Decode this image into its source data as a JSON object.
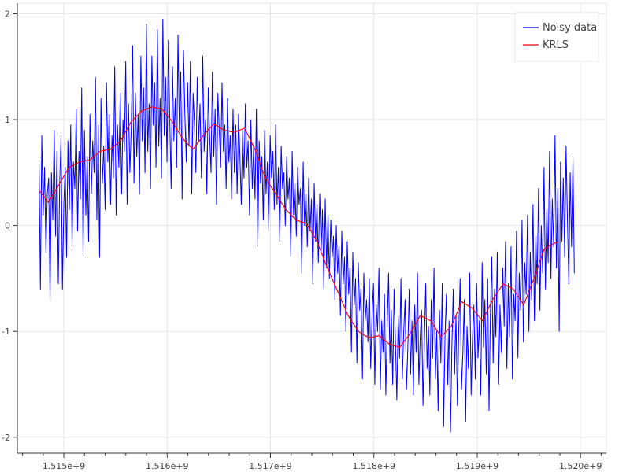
{
  "chart_data": {
    "type": "line",
    "title": "",
    "xlabel": "",
    "ylabel": "",
    "xlim": [
      1514550000,
      1520250000
    ],
    "ylim": [
      -2.15,
      2.1
    ],
    "x_ticks": [
      1515000000,
      1516000000,
      1517000000,
      1518000000,
      1519000000,
      1520000000
    ],
    "x_tick_labels": [
      "1.515e+9",
      "1.516e+9",
      "1.517e+9",
      "1.518e+9",
      "1.519e+9",
      "1.520e+9"
    ],
    "y_ticks": [
      -2,
      -1,
      0,
      1,
      2
    ],
    "y_tick_labels": [
      "-2",
      "-1",
      "0",
      "1",
      "2"
    ],
    "grid": true,
    "legend": {
      "placement": "top-right",
      "entries": [
        {
          "label": "Noisy data",
          "color": "#0000ff"
        },
        {
          "label": "KRLS",
          "color": "#ff0000"
        }
      ]
    },
    "series": [
      {
        "name": "Noisy data",
        "color": "#0000ff",
        "x_start": 1514760000,
        "x_end": 1519940000,
        "count": 400,
        "values": [
          0.62,
          -0.6,
          0.85,
          0.1,
          0.55,
          -0.25,
          0.3,
          0.45,
          -0.72,
          0.5,
          0.05,
          0.9,
          -0.1,
          0.7,
          -0.55,
          0.4,
          0.85,
          -0.6,
          0.2,
          0.55,
          -0.3,
          0.8,
          0.15,
          0.95,
          -0.2,
          0.6,
          0.35,
          1.1,
          -0.05,
          0.7,
          0.25,
          1.3,
          -0.3,
          0.9,
          0.1,
          0.65,
          -0.15,
          1.05,
          0.3,
          0.8,
          0.5,
          1.4,
          0.05,
          0.95,
          -0.3,
          1.2,
          0.4,
          0.75,
          0.15,
          1.35,
          0.6,
          1.05,
          0.2,
          0.85,
          0.45,
          1.5,
          0.1,
          0.95,
          0.55,
          1.25,
          0.3,
          1.0,
          0.7,
          1.55,
          0.2,
          1.15,
          0.5,
          0.9,
          1.7,
          0.4,
          1.25,
          0.65,
          1.05,
          0.3,
          1.6,
          0.8,
          1.3,
          0.5,
          1.9,
          0.7,
          1.15,
          0.35,
          1.6,
          0.95,
          1.35,
          0.55,
          1.85,
          0.75,
          1.2,
          0.45,
          1.95,
          0.85,
          1.4,
          0.6,
          1.75,
          1.0,
          0.35,
          1.5,
          0.8,
          1.2,
          0.55,
          1.8,
          0.9,
          1.45,
          0.25,
          1.65,
          1.05,
          0.6,
          1.35,
          0.75,
          1.55,
          0.3,
          1.25,
          0.95,
          0.5,
          1.4,
          0.8,
          1.15,
          0.45,
          1.6,
          0.7,
          1.0,
          0.3,
          1.3,
          0.85,
          0.5,
          1.45,
          0.65,
          1.1,
          0.2,
          1.25,
          0.9,
          0.55,
          1.35,
          0.7,
          0.95,
          0.35,
          1.2,
          0.6,
          0.85,
          0.25,
          1.1,
          0.5,
          0.95,
          0.3,
          1.05,
          0.65,
          0.2,
          0.9,
          0.45,
          1.15,
          0.55,
          0.8,
          0.1,
          1.0,
          0.35,
          0.75,
          0.25,
          1.1,
          -0.2,
          0.8,
          0.4,
          0.65,
          0.05,
          0.9,
          0.3,
          0.6,
          -0.05,
          0.85,
          0.45,
          0.7,
          0.15,
          0.95,
          0.2,
          0.55,
          -0.15,
          0.75,
          0.35,
          0.5,
          0.0,
          0.65,
          0.25,
          0.45,
          -0.3,
          0.7,
          0.1,
          0.4,
          -0.1,
          0.55,
          0.2,
          0.35,
          -0.45,
          0.6,
          0.0,
          0.3,
          -0.2,
          0.45,
          -0.05,
          0.25,
          -0.55,
          0.4,
          -0.15,
          0.2,
          -0.35,
          0.3,
          -0.25,
          0.15,
          -0.6,
          0.25,
          -0.4,
          0.1,
          -0.5,
          0.05,
          -0.3,
          -0.1,
          -0.7,
          0.0,
          -0.45,
          -0.2,
          -0.85,
          -0.05,
          -0.55,
          -0.3,
          -1.0,
          -0.15,
          -0.65,
          -0.4,
          -1.2,
          -0.25,
          -0.75,
          -0.5,
          -1.3,
          -0.35,
          -0.8,
          -0.6,
          -1.45,
          -0.45,
          -0.9,
          -0.7,
          -1.1,
          -0.5,
          -1.35,
          -0.85,
          -0.55,
          -1.5,
          -0.75,
          -1.0,
          -0.4,
          -1.55,
          -0.9,
          -1.2,
          -0.65,
          -1.6,
          -0.95,
          -0.45,
          -1.3,
          -0.8,
          -1.5,
          -0.6,
          -1.1,
          -1.65,
          -0.85,
          -1.25,
          -0.5,
          -1.45,
          -1.0,
          -0.7,
          -1.55,
          -1.15,
          -0.6,
          -1.4,
          -0.9,
          -1.6,
          -0.75,
          -1.2,
          -0.45,
          -1.5,
          -1.05,
          -0.8,
          -1.7,
          -1.1,
          -0.55,
          -1.35,
          -0.95,
          -1.6,
          -0.7,
          -1.25,
          -0.4,
          -1.45,
          -1.0,
          -1.75,
          -0.8,
          -1.3,
          -0.55,
          -1.9,
          -1.05,
          -0.65,
          -1.5,
          -0.9,
          -1.95,
          -1.15,
          -0.6,
          -1.4,
          -0.85,
          -1.7,
          -1.0,
          -0.5,
          -1.55,
          -1.2,
          -0.7,
          -1.85,
          -0.95,
          -1.35,
          -0.45,
          -1.6,
          -1.05,
          -0.75,
          -1.45,
          -0.55,
          -1.25,
          -0.9,
          -1.6,
          -0.35,
          -1.15,
          -0.7,
          -1.4,
          -0.5,
          -1.75,
          -0.85,
          -0.3,
          -1.3,
          -0.6,
          -1.05,
          -0.25,
          -1.5,
          -0.75,
          -1.2,
          -0.4,
          -0.95,
          -0.15,
          -1.35,
          -0.55,
          -1.05,
          -0.2,
          -1.45,
          -0.65,
          -0.9,
          -0.05,
          -1.25,
          -0.45,
          -0.8,
          0.05,
          -1.1,
          -0.35,
          -0.65,
          0.1,
          -1.0,
          -0.25,
          -0.7,
          0.2,
          -0.9,
          -0.1,
          -0.55,
          0.35,
          -0.8,
          0.0,
          -0.45,
          0.55,
          -0.6,
          0.15,
          -0.35,
          0.7,
          -0.5,
          0.25,
          -0.2,
          0.85,
          -0.4,
          0.35,
          -1.0,
          0.6,
          -0.15,
          0.45,
          -0.3,
          0.75,
          0.05,
          -0.55,
          0.5,
          -0.2,
          0.65,
          -0.45
        ]
      },
      {
        "name": "KRLS",
        "color": "#ff0000",
        "x": [
          1514760000,
          1514850000,
          1514950000,
          1515050000,
          1515150000,
          1515250000,
          1515350000,
          1515450000,
          1515550000,
          1515650000,
          1515750000,
          1515850000,
          1515950000,
          1516050000,
          1516150000,
          1516250000,
          1516350000,
          1516450000,
          1516550000,
          1516650000,
          1516750000,
          1516850000,
          1516950000,
          1517050000,
          1517150000,
          1517250000,
          1517350000,
          1517450000,
          1517550000,
          1517650000,
          1517750000,
          1517850000,
          1517950000,
          1518050000,
          1518150000,
          1518250000,
          1518350000,
          1518450000,
          1518550000,
          1518650000,
          1518750000,
          1518850000,
          1518950000,
          1519050000,
          1519150000,
          1519250000,
          1519350000,
          1519450000,
          1519550000,
          1519650000,
          1519780000
        ],
        "values": [
          0.33,
          0.22,
          0.38,
          0.55,
          0.6,
          0.62,
          0.7,
          0.72,
          0.8,
          0.98,
          1.08,
          1.12,
          1.1,
          0.98,
          0.82,
          0.72,
          0.85,
          0.96,
          0.9,
          0.88,
          0.92,
          0.72,
          0.45,
          0.3,
          0.15,
          0.05,
          0.02,
          -0.15,
          -0.4,
          -0.62,
          -0.85,
          -1.0,
          -1.06,
          -1.04,
          -1.12,
          -1.15,
          -1.02,
          -0.85,
          -0.9,
          -1.05,
          -0.95,
          -0.72,
          -0.78,
          -0.9,
          -0.7,
          -0.55,
          -0.6,
          -0.75,
          -0.5,
          -0.22,
          -0.15
        ]
      }
    ]
  }
}
